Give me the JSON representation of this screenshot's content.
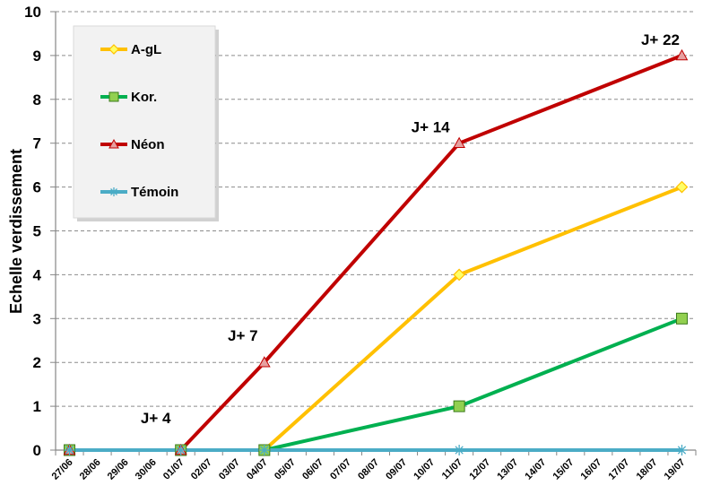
{
  "chart_data": {
    "type": "line",
    "title": "",
    "xlabel": "",
    "ylabel": "Echelle verdissement",
    "ylim": [
      0,
      10
    ],
    "yticks": [
      0,
      1,
      2,
      3,
      4,
      5,
      6,
      7,
      8,
      9,
      10
    ],
    "grid": "horizontal dashed",
    "legend_position": "top-left",
    "categories": [
      "27/06",
      "28/06",
      "29/06",
      "30/06",
      "01/07",
      "02/07",
      "03/07",
      "04/07",
      "05/07",
      "06/07",
      "07/07",
      "08/07",
      "09/07",
      "10/07",
      "11/07",
      "12/07",
      "13/07",
      "14/07",
      "15/07",
      "16/07",
      "17/07",
      "18/07",
      "19/07"
    ],
    "series": [
      {
        "name": "A-gL",
        "color": "#FFC000",
        "marker": "diamond",
        "points": [
          {
            "x": "27/06",
            "y": 0
          },
          {
            "x": "01/07",
            "y": 0
          },
          {
            "x": "04/07",
            "y": 0
          },
          {
            "x": "11/07",
            "y": 4
          },
          {
            "x": "19/07",
            "y": 6
          }
        ]
      },
      {
        "name": "Kor.",
        "color": "#00B050",
        "marker": "square",
        "points": [
          {
            "x": "27/06",
            "y": 0
          },
          {
            "x": "01/07",
            "y": 0
          },
          {
            "x": "04/07",
            "y": 0
          },
          {
            "x": "11/07",
            "y": 1
          },
          {
            "x": "19/07",
            "y": 3
          }
        ]
      },
      {
        "name": "Néon",
        "color": "#C00000",
        "marker": "triangle",
        "points": [
          {
            "x": "27/06",
            "y": 0
          },
          {
            "x": "01/07",
            "y": 0
          },
          {
            "x": "04/07",
            "y": 2
          },
          {
            "x": "11/07",
            "y": 7
          },
          {
            "x": "19/07",
            "y": 9
          }
        ]
      },
      {
        "name": "Témoin",
        "color": "#4BACC6",
        "marker": "asterisk",
        "points": [
          {
            "x": "27/06",
            "y": 0
          },
          {
            "x": "01/07",
            "y": 0
          },
          {
            "x": "04/07",
            "y": 0
          },
          {
            "x": "11/07",
            "y": 0
          },
          {
            "x": "19/07",
            "y": 0
          }
        ]
      }
    ],
    "annotations": [
      {
        "text": "J+ 4",
        "x": "01/07",
        "y": 0
      },
      {
        "text": "J+ 7",
        "x": "04/07",
        "y": 2
      },
      {
        "text": "J+ 14",
        "x": "11/07",
        "y": 7
      },
      {
        "text": "J+ 22",
        "x": "19/07",
        "y": 9
      }
    ]
  }
}
